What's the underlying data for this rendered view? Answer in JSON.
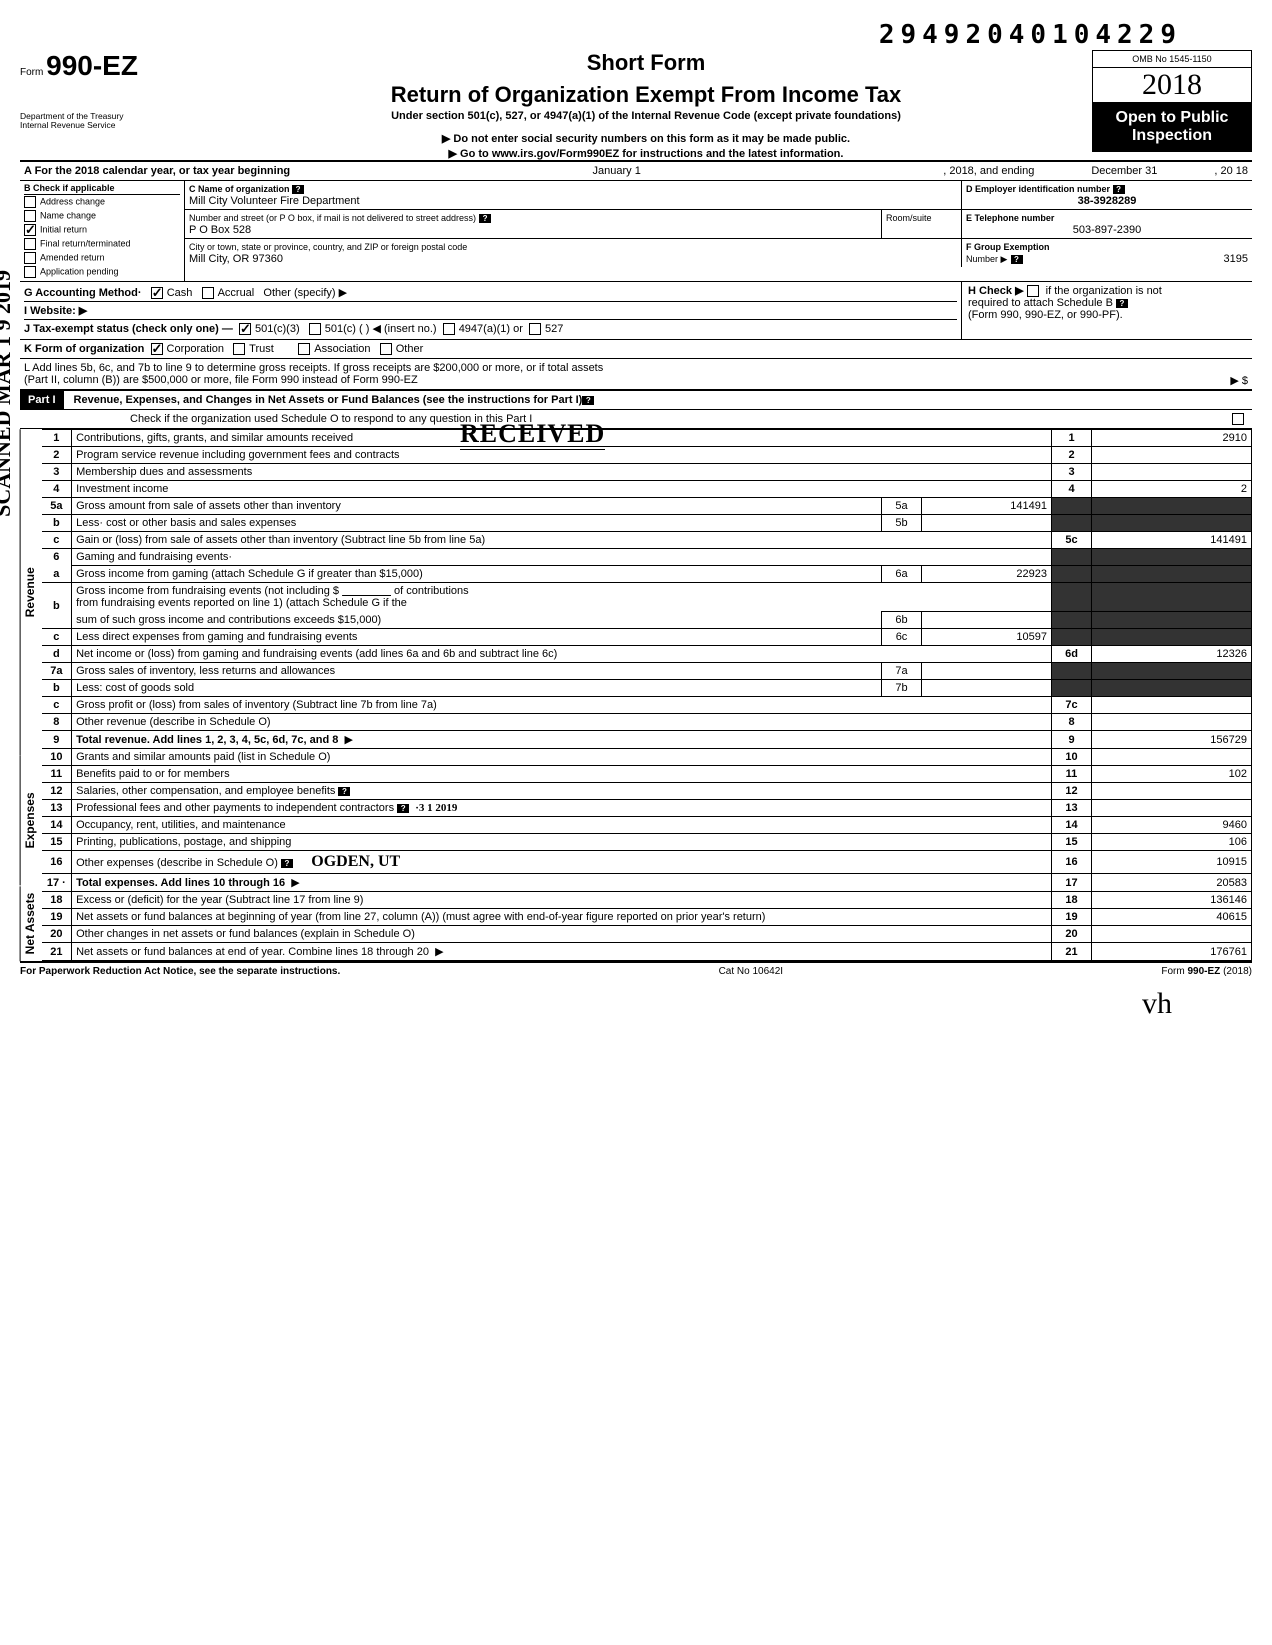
{
  "top_code": "29492040104229",
  "omb": "OMB No 1545-1150",
  "form_prefix": "Form",
  "form_number": "990-EZ",
  "short_form": "Short Form",
  "main_title": "Return of Organization Exempt From Income Tax",
  "subtitle_1": "Under section 501(c), 527, or 4947(a)(1) of the Internal Revenue Code (except private foundations)",
  "subtitle_2": "▶ Do not enter social security numbers on this form as it may be made public.",
  "subtitle_3": "▶ Go to www.irs.gov/Form990EZ for instructions and the latest information.",
  "dept_1": "Department of the Treasury",
  "dept_2": "Internal Revenue Service",
  "year_plain": "20",
  "year_bold": "18",
  "open_pub_1": "Open to Public",
  "open_pub_2": "Inspection",
  "rowA": {
    "label": "A For the 2018 calendar year, or tax year beginning",
    "begin": "January 1",
    "mid": ", 2018, and ending",
    "end": "December 31",
    "tail": ", 20   18"
  },
  "B": {
    "header": "B Check if applicable",
    "items": [
      "Address change",
      "Name change",
      "Initial return",
      "Final return/terminated",
      "Amended return",
      "Application pending"
    ],
    "checked_idx": 2
  },
  "C": {
    "label": "C Name of organization",
    "value": "Mill City Volunteer Fire Department",
    "addr_label": "Number and street (or P O box, if mail is not delivered to street address)",
    "room_label": "Room/suite",
    "addr": "P O Box 528",
    "city_label": "City or town, state or province, country, and ZIP or foreign postal code",
    "city": "Mill City, OR 97360"
  },
  "D": {
    "label": "D Employer identification number",
    "value": "38-3928289"
  },
  "E": {
    "label": "E Telephone number",
    "value": "503-897-2390"
  },
  "F": {
    "label1": "F Group Exemption",
    "label2": "Number ▶",
    "value": "3195"
  },
  "G": {
    "label": "G Accounting Method·",
    "cash": "Cash",
    "accrual": "Accrual",
    "other": "Other (specify) ▶"
  },
  "H": {
    "line1": "H Check ▶",
    "line1b": "if the organization is not",
    "line2": "required to attach Schedule B",
    "line3": "(Form 990, 990-EZ, or 990-PF)."
  },
  "I": {
    "label": "I  Website: ▶"
  },
  "J": {
    "label": "J Tax-exempt status (check only one) —",
    "o1": "501(c)(3)",
    "o2": "501(c) (",
    "o2b": ") ◀ (insert no.)",
    "o3": "4947(a)(1) or",
    "o4": "527"
  },
  "K": {
    "label": "K Form of organization",
    "o1": "Corporation",
    "o2": "Trust",
    "o3": "Association",
    "o4": "Other"
  },
  "L": {
    "line1": "L  Add lines 5b, 6c, and 7b to line 9 to determine gross receipts. If gross receipts are $200,000 or more, or if total assets",
    "line2": "(Part II, column (B)) are $500,000 or more, file Form 990 instead of Form 990-EZ",
    "arrow": "▶   $"
  },
  "scanned": "SCANNED MAR 1 9 2019",
  "partI": {
    "tag": "Part I",
    "title": "Revenue, Expenses, and Changes in Net Assets or Fund Balances (see the instructions for Part I)",
    "check_line": "Check if the organization used Schedule O to respond to any question in this Part I"
  },
  "sections": {
    "rev": "Revenue",
    "exp": "Expenses",
    "na": "Net Assets"
  },
  "lines": {
    "1": {
      "n": "1",
      "d": "Contributions, gifts, grants, and similar amounts received",
      "r": "1",
      "v": "2910"
    },
    "2": {
      "n": "2",
      "d": "Program service revenue including government fees and contracts",
      "r": "2",
      "v": ""
    },
    "3": {
      "n": "3",
      "d": "Membership dues and assessments",
      "r": "3",
      "v": ""
    },
    "4": {
      "n": "4",
      "d": "Investment income",
      "r": "4",
      "v": "2"
    },
    "5a": {
      "n": "5a",
      "d": "Gross amount from sale of assets other than inventory",
      "sn": "5a",
      "sv": "141491"
    },
    "5b": {
      "n": "b",
      "d": "Less· cost or other basis and sales expenses",
      "sn": "5b",
      "sv": ""
    },
    "5c": {
      "n": "c",
      "d": "Gain or (loss) from sale of assets other than inventory (Subtract line 5b from line 5a)",
      "r": "5c",
      "v": "141491"
    },
    "6": {
      "n": "6",
      "d": "Gaming and fundraising events·"
    },
    "6a": {
      "n": "a",
      "d": "Gross income from gaming (attach Schedule G if greater than $15,000)",
      "sn": "6a",
      "sv": "22923"
    },
    "6b": {
      "n": "b",
      "d1": "Gross income from fundraising events (not including  $",
      "d2": "of contributions",
      "d3": "from fundraising events reported on line 1) (attach Schedule G if the",
      "d4": "sum of such gross income and contributions exceeds $15,000)",
      "sn": "6b",
      "sv": ""
    },
    "6c": {
      "n": "c",
      "d": "Less direct expenses from gaming and fundraising events",
      "sn": "6c",
      "sv": "10597"
    },
    "6d": {
      "n": "d",
      "d": "Net income or (loss) from gaming and fundraising events (add lines 6a and 6b and subtract line 6c)",
      "r": "6d",
      "v": "12326"
    },
    "7a": {
      "n": "7a",
      "d": "Gross sales of inventory, less returns and allowances",
      "sn": "7a",
      "sv": ""
    },
    "7b": {
      "n": "b",
      "d": "Less: cost of goods sold",
      "sn": "7b",
      "sv": ""
    },
    "7c": {
      "n": "c",
      "d": "Gross profit or (loss) from sales of inventory (Subtract line 7b from line 7a)",
      "r": "7c",
      "v": ""
    },
    "8": {
      "n": "8",
      "d": "Other revenue (describe in Schedule O)",
      "r": "8",
      "v": ""
    },
    "9": {
      "n": "9",
      "d": "Total revenue. Add lines 1, 2, 3, 4, 5c, 6d, 7c, and 8",
      "r": "9",
      "v": "156729",
      "bold": true
    },
    "10": {
      "n": "10",
      "d": "Grants and similar amounts paid (list in Schedule O)",
      "r": "10",
      "v": ""
    },
    "11": {
      "n": "11",
      "d": "Benefits paid to or for members",
      "r": "11",
      "v": "102"
    },
    "12": {
      "n": "12",
      "d": "Salaries, other compensation, and employee benefits",
      "r": "12",
      "v": ""
    },
    "13": {
      "n": "13",
      "d": "Professional fees and other payments to independent contractors",
      "r": "13",
      "v": ""
    },
    "14": {
      "n": "14",
      "d": "Occupancy, rent, utilities, and maintenance",
      "r": "14",
      "v": "9460"
    },
    "15": {
      "n": "15",
      "d": "Printing, publications, postage, and shipping",
      "r": "15",
      "v": "106"
    },
    "16": {
      "n": "16",
      "d": "Other expenses (describe in Schedule O)",
      "r": "16",
      "v": "10915"
    },
    "17": {
      "n": "17 ·",
      "d": "Total expenses. Add lines 10 through 16",
      "r": "17",
      "v": "20583",
      "bold": true
    },
    "18": {
      "n": "18",
      "d": "Excess or (deficit) for the year (Subtract line 17 from line 9)",
      "r": "18",
      "v": "136146"
    },
    "19": {
      "n": "19",
      "d": "Net assets or fund balances at beginning of year (from line 27, column (A)) (must agree with end-of-year figure reported on prior year's return)",
      "r": "19",
      "v": "40615"
    },
    "20": {
      "n": "20",
      "d": "Other changes in net assets or fund balances (explain in Schedule O)",
      "r": "20",
      "v": ""
    },
    "21": {
      "n": "21",
      "d": "Net assets or fund balances at end of year. Combine lines 18 through 20",
      "r": "21",
      "v": "176761"
    }
  },
  "stamp": {
    "received": "RECEIVED",
    "date": "·3 1  2019",
    "city": "OGDEN, UT"
  },
  "footer": {
    "left": "For Paperwork Reduction Act Notice, see the separate instructions.",
    "mid": "Cat No 10642I",
    "right": "Form 990-EZ (2018)"
  },
  "signature": "vh"
}
